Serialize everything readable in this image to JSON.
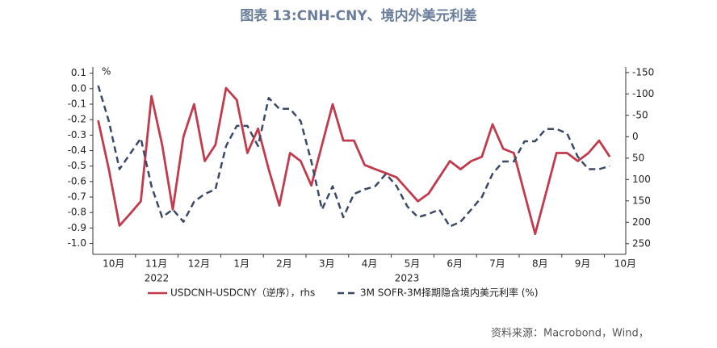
{
  "chart_data": {
    "type": "line",
    "title": "图表 13:CNH-CNY、境内外美元利差",
    "y_axis_label": "%",
    "year_labels": [
      "2022",
      "2023"
    ],
    "source": "资料来源：Macrobond，Wind，",
    "categories": [
      null,
      "10月",
      null,
      null,
      null,
      "11月",
      null,
      null,
      null,
      "12月",
      null,
      null,
      null,
      "1月",
      null,
      null,
      null,
      "2月",
      null,
      null,
      null,
      "3月",
      null,
      null,
      null,
      "4月",
      null,
      null,
      null,
      "5月",
      null,
      null,
      null,
      "6月",
      null,
      null,
      null,
      "7月",
      null,
      null,
      null,
      "8月",
      null,
      null,
      null,
      "9月",
      null,
      null,
      null,
      "10月"
    ],
    "ylim": [
      -1.07,
      0.14
    ],
    "yticks": [
      0.1,
      {
        "value": 0,
        "label": "0.0"
      },
      -0.1,
      -0.2,
      -0.3,
      -0.4,
      -0.5,
      -0.6,
      -0.7,
      -0.8,
      -0.9,
      {
        "value": -1,
        "label": "-1.0"
      }
    ],
    "y2lim": [
      -163,
      275
    ],
    "y2_reversed": true,
    "y2ticks": [
      -150,
      -100,
      -50,
      0,
      50,
      100,
      150,
      200,
      250
    ],
    "series": [
      {
        "name": "USDCNH-USDCNY（逆序），rhs",
        "color": "#c23b4c",
        "axis": "y2",
        "dash": false,
        "values": [
          -38,
          76,
          208,
          180,
          151,
          -95,
          19,
          170,
          0,
          -76,
          57,
          19,
          -114,
          -86,
          38,
          -19,
          76,
          161,
          38,
          57,
          114,
          19,
          -76,
          9,
          9,
          66,
          76,
          85,
          95,
          123,
          151,
          133,
          95,
          57,
          76,
          57,
          47,
          -29,
          28,
          38,
          133,
          227,
          133,
          38,
          38,
          57,
          38,
          9,
          47,
          null
        ]
      },
      {
        "name": "3M SOFR-3M择期隐含境内美元利率 (%)",
        "color": "#3b4966",
        "axis": "y",
        "dash": true,
        "values": [
          0.02,
          -0.21,
          -0.52,
          -0.42,
          -0.32,
          -0.63,
          -0.83,
          -0.78,
          -0.86,
          -0.73,
          -0.68,
          -0.65,
          -0.37,
          -0.24,
          -0.24,
          -0.37,
          -0.06,
          -0.13,
          -0.13,
          -0.21,
          -0.47,
          -0.78,
          -0.63,
          -0.83,
          -0.68,
          -0.65,
          -0.63,
          -0.55,
          -0.63,
          -0.76,
          -0.83,
          -0.81,
          -0.78,
          -0.89,
          -0.86,
          -0.78,
          -0.7,
          -0.55,
          -0.47,
          -0.47,
          -0.34,
          -0.34,
          -0.26,
          -0.26,
          -0.29,
          -0.44,
          -0.52,
          -0.52,
          -0.5,
          null
        ]
      }
    ]
  }
}
